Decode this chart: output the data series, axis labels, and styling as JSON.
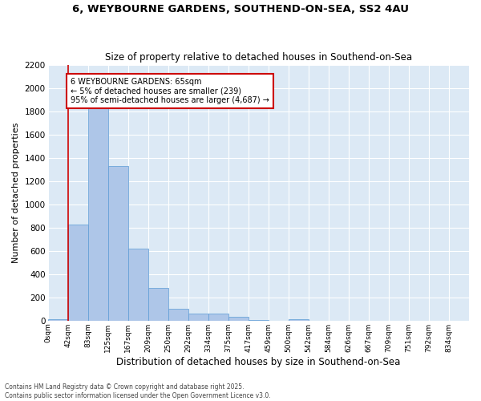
{
  "title_line1": "6, WEYBOURNE GARDENS, SOUTHEND-ON-SEA, SS2 4AU",
  "title_line2": "Size of property relative to detached houses in Southend-on-Sea",
  "xlabel": "Distribution of detached houses by size in Southend-on-Sea",
  "ylabel": "Number of detached properties",
  "categories": [
    "0sqm",
    "42sqm",
    "83sqm",
    "125sqm",
    "167sqm",
    "209sqm",
    "250sqm",
    "292sqm",
    "334sqm",
    "375sqm",
    "417sqm",
    "459sqm",
    "500sqm",
    "542sqm",
    "584sqm",
    "626sqm",
    "667sqm",
    "709sqm",
    "751sqm",
    "792sqm",
    "834sqm"
  ],
  "values": [
    10,
    830,
    1870,
    1330,
    620,
    280,
    100,
    60,
    60,
    30,
    5,
    0,
    15,
    0,
    0,
    0,
    0,
    0,
    0,
    0,
    0
  ],
  "bar_color": "#aec6e8",
  "bar_edge_color": "#5b9bd5",
  "vline_x": 1,
  "vline_color": "#cc0000",
  "annotation_text": "6 WEYBOURNE GARDENS: 65sqm\n← 5% of detached houses are smaller (239)\n95% of semi-detached houses are larger (4,687) →",
  "annotation_box_color": "#cc0000",
  "annotation_text_color": "#000000",
  "annotation_bg": "#ffffff",
  "ylim": [
    0,
    2200
  ],
  "yticks": [
    0,
    200,
    400,
    600,
    800,
    1000,
    1200,
    1400,
    1600,
    1800,
    2000,
    2200
  ],
  "bg_color": "#dce9f5",
  "grid_color": "#ffffff",
  "footer_line1": "Contains HM Land Registry data © Crown copyright and database right 2025.",
  "footer_line2": "Contains public sector information licensed under the Open Government Licence v3.0."
}
